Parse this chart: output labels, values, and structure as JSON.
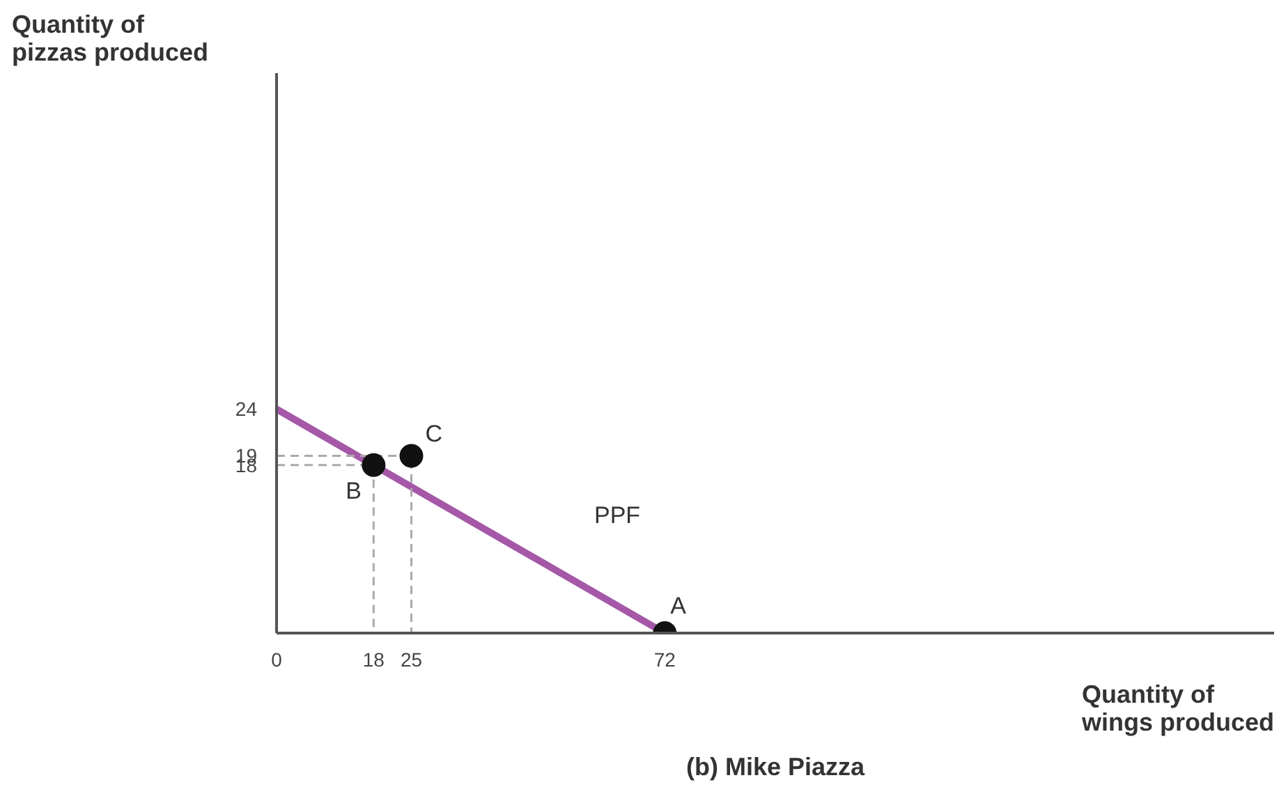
{
  "chart_data": {
    "type": "line",
    "title": "(b) Mike Piazza",
    "xlabel": "Quantity of wings produced",
    "ylabel": "Quantity of pizzas produced",
    "xlim": [
      0,
      185
    ],
    "ylim": [
      0,
      60
    ],
    "xticks": [
      0,
      18,
      25,
      72
    ],
    "yticks": [
      18,
      19,
      24
    ],
    "grid": false,
    "series": [
      {
        "color": "#a558a8",
        "x": [
          0,
          72
        ],
        "values": [
          24,
          0
        ],
        "line_style": "solid",
        "marker": "none"
      },
      {
        "color": "#aaaaaa",
        "x": [
          0,
          18,
          18
        ],
        "values": [
          18,
          18,
          0
        ],
        "line_style": "dashed",
        "marker": "none"
      },
      {
        "color": "#aaaaaa",
        "x": [
          0,
          25,
          25
        ],
        "values": [
          19,
          19,
          0
        ],
        "line_style": "dashed",
        "marker": "none"
      },
      {
        "type": "scatter",
        "color": "#111111",
        "x": [
          72,
          18,
          25
        ],
        "values": [
          0,
          18,
          19
        ],
        "marker": "circle"
      }
    ],
    "annotations": [
      {
        "text": "A",
        "x": 72,
        "y": 0
      },
      {
        "text": "B",
        "x": 18,
        "y": 18
      },
      {
        "text": "C",
        "x": 25,
        "y": 19
      },
      "PPF"
    ]
  }
}
